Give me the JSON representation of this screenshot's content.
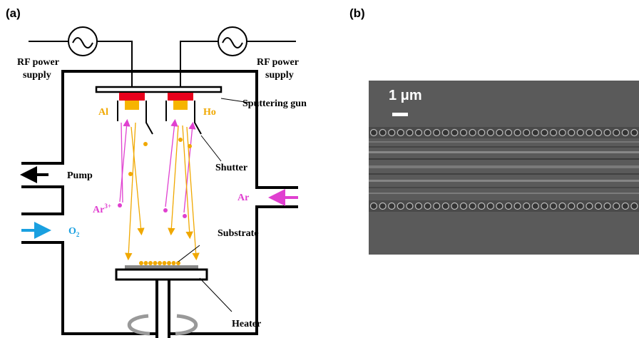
{
  "panels": {
    "a": "(a)",
    "b": "(b)"
  },
  "diagram": {
    "rf_left": [
      "RF power",
      "supply"
    ],
    "rf_right": [
      "RF power",
      "supply"
    ],
    "sputtering_gun": "Sputtering gun",
    "target_left": "Al",
    "target_right": "Ho",
    "shutter": "Shutter",
    "pump": "Pump",
    "argon": "Ar",
    "argon_ion": {
      "base": "Ar",
      "sup": "3+"
    },
    "oxygen": {
      "base": "O",
      "sub": "2"
    },
    "substrate": "Substrate",
    "heater": "Heater"
  },
  "sem": {
    "scale_bar": "1 μm"
  }
}
